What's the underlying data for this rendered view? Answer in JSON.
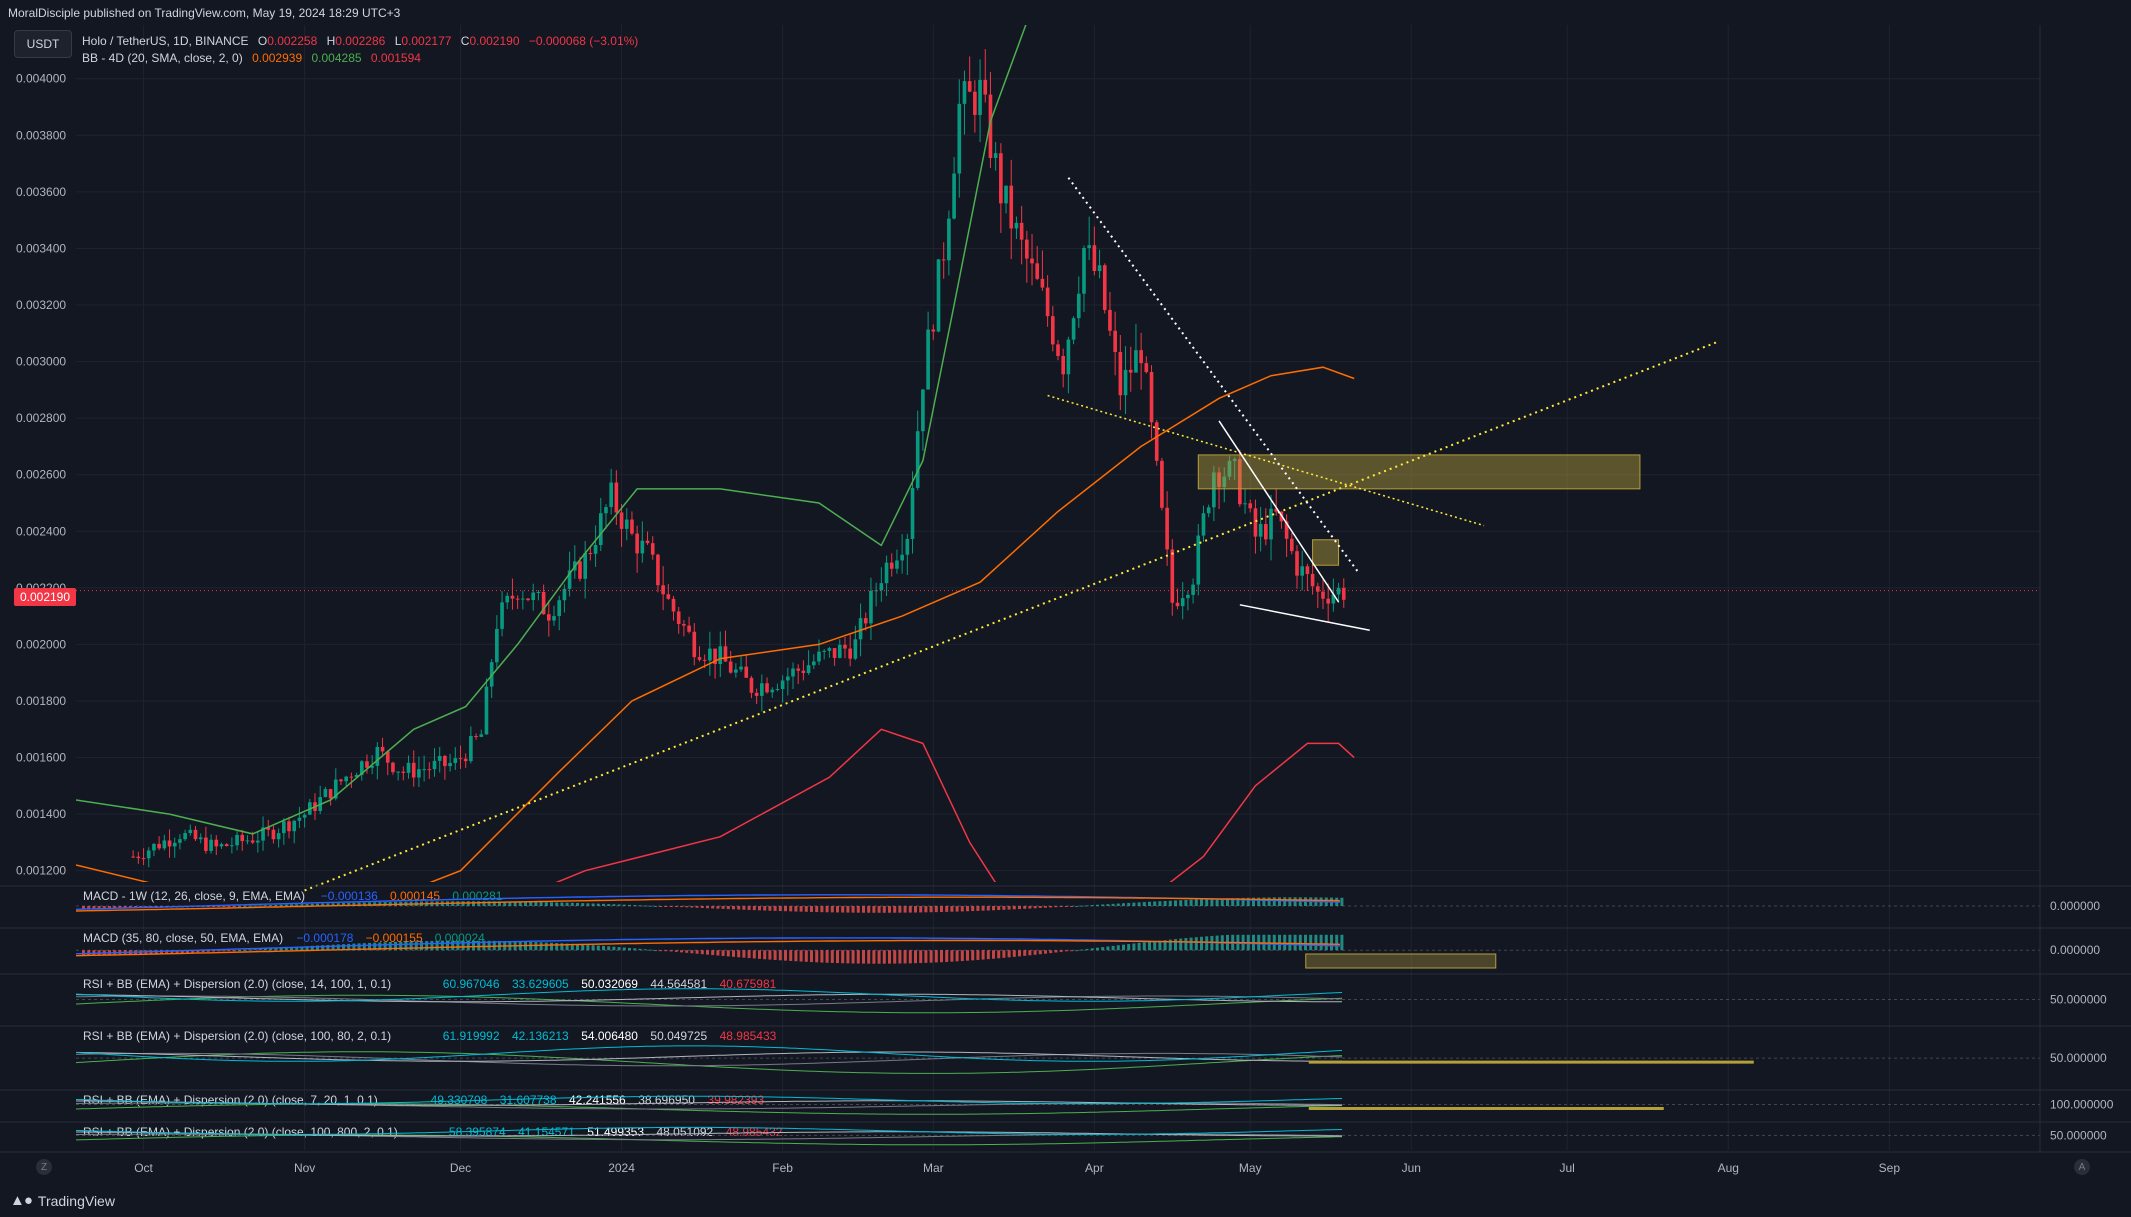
{
  "header": {
    "published": "MoralDisciple published on TradingView.com, May 19, 2024 18:29 UTC+3"
  },
  "currency_button": "USDT",
  "legend": {
    "symbol": "Holo / TetherUS, 1D, BINANCE",
    "o_label": "O",
    "o": "0.002258",
    "h_label": "H",
    "h": "0.002286",
    "l_label": "L",
    "l": "0.002177",
    "c_label": "C",
    "c": "0.002190",
    "change": "−0.000068 (−3.01%)",
    "bb_label": "BB - 4D (20, SMA, close, 2, 0)",
    "bb_basis": "0.002939",
    "bb_upper": "0.004285",
    "bb_lower": "0.001594"
  },
  "last_price_tag": "0.002190",
  "panes": [
    {
      "id": "macd1",
      "label": "MACD - 1W (12, 26, close, 9, EMA, EMA)",
      "values": [
        "−0.000136",
        "0.000145",
        "0.000281"
      ],
      "scale": "0.000000"
    },
    {
      "id": "macd2",
      "label": "MACD (35, 80, close, 50, EMA, EMA)",
      "values": [
        "−0.000178",
        "−0.000155",
        "0.000024"
      ],
      "scale": "0.000000"
    },
    {
      "id": "rsi1",
      "label": "RSI + BB (EMA) + Dispersion (2.0) (close, 14, 100, 1, 0.1)",
      "values": [
        "60.967046",
        "33.629605",
        "50.032069",
        "44.564581",
        "40.675981"
      ],
      "scale": "50.000000"
    },
    {
      "id": "rsi2",
      "label": "RSI + BB (EMA) + Dispersion (2.0) (close, 100, 80, 2, 0.1)",
      "values": [
        "61.919992",
        "42.136213",
        "54.006480",
        "50.049725",
        "48.985433"
      ],
      "scale": "50.000000"
    },
    {
      "id": "rsi3",
      "label": "RSI + BB (EMA) + Dispersion (2.0) (close, 7, 20, 1, 0.1)",
      "values": [
        "49.330708",
        "31.607738",
        "42.241556",
        "38.696950",
        "39.982393"
      ],
      "scale": "100.000000"
    },
    {
      "id": "rsi4",
      "label": "RSI + BB (EMA) + Dispersion (2.0) (close, 100, 800, 2, 0.1)",
      "values": [
        "58.395874",
        "41.154571",
        "51.499353",
        "48.051092",
        "48.985432"
      ],
      "scale": "50.000000"
    }
  ],
  "brand": "TradingView",
  "corner_left": "Z",
  "corner_right": "A",
  "colors": {
    "background": "#131722",
    "up": "#089981",
    "down": "#f23645",
    "bb_basis": "#ff6d00",
    "bb_upper": "#4caf50",
    "bb_lower": "#f23645",
    "trendline": "#ffeb3b",
    "zone": "#b59f3b"
  },
  "chart_data": {
    "type": "candlestick",
    "symbol": "Holo / TetherUS",
    "interval": "1D",
    "exchange": "BINANCE",
    "yticks": [
      "0.004000",
      "0.003800",
      "0.003600",
      "0.003400",
      "0.003200",
      "0.003000",
      "0.002800",
      "0.002600",
      "0.002400",
      "0.002200",
      "0.002000",
      "0.001800",
      "0.001600",
      "0.001400",
      "0.001200"
    ],
    "ylim": [
      0.00116,
      0.00419
    ],
    "xticks": [
      {
        "label": "Oct",
        "date": "2023-10-01"
      },
      {
        "label": "Nov",
        "date": "2023-11-01"
      },
      {
        "label": "Dec",
        "date": "2023-12-01"
      },
      {
        "label": "2024",
        "date": "2024-01-01"
      },
      {
        "label": "Feb",
        "date": "2024-02-01"
      },
      {
        "label": "Mar",
        "date": "2024-03-01"
      },
      {
        "label": "Apr",
        "date": "2024-04-01"
      },
      {
        "label": "May",
        "date": "2024-05-01"
      },
      {
        "label": "Jun",
        "date": "2024-06-01"
      },
      {
        "label": "Jul",
        "date": "2024-07-01"
      },
      {
        "label": "Aug",
        "date": "2024-08-01"
      },
      {
        "label": "Sep",
        "date": "2024-09-01"
      }
    ],
    "xlim": [
      "2023-09-18",
      "2024-09-30"
    ],
    "close_path": [
      [
        "2023-09-29",
        0.00125
      ],
      [
        "2023-10-08",
        0.00133
      ],
      [
        "2023-10-15",
        0.00128
      ],
      [
        "2023-10-25",
        0.00133
      ],
      [
        "2023-11-01",
        0.0014
      ],
      [
        "2023-11-10",
        0.00155
      ],
      [
        "2023-11-15",
        0.00162
      ],
      [
        "2023-11-20",
        0.00155
      ],
      [
        "2023-11-30",
        0.00158
      ],
      [
        "2023-12-05",
        0.00168
      ],
      [
        "2023-12-08",
        0.00208
      ],
      [
        "2023-12-12",
        0.0022
      ],
      [
        "2023-12-18",
        0.00212
      ],
      [
        "2023-12-25",
        0.0023
      ],
      [
        "2023-12-30",
        0.00252
      ],
      [
        "2024-01-03",
        0.00238
      ],
      [
        "2024-01-06",
        0.00232
      ],
      [
        "2024-01-10",
        0.00215
      ],
      [
        "2024-01-15",
        0.002
      ],
      [
        "2024-01-20",
        0.00195
      ],
      [
        "2024-01-26",
        0.00185
      ],
      [
        "2024-02-01",
        0.00188
      ],
      [
        "2024-02-08",
        0.00195
      ],
      [
        "2024-02-15",
        0.002
      ],
      [
        "2024-02-20",
        0.00225
      ],
      [
        "2024-02-25",
        0.0024
      ],
      [
        "2024-02-28",
        0.00295
      ],
      [
        "2024-03-03",
        0.0034
      ],
      [
        "2024-03-06",
        0.0039
      ],
      [
        "2024-03-10",
        0.00395
      ],
      [
        "2024-03-14",
        0.0036
      ],
      [
        "2024-03-18",
        0.0034
      ],
      [
        "2024-03-22",
        0.00322
      ],
      [
        "2024-03-26",
        0.003
      ],
      [
        "2024-03-30",
        0.0034
      ],
      [
        "2024-04-02",
        0.00328
      ],
      [
        "2024-04-06",
        0.0029
      ],
      [
        "2024-04-10",
        0.00305
      ],
      [
        "2024-04-13",
        0.0026
      ],
      [
        "2024-04-16",
        0.00215
      ],
      [
        "2024-04-20",
        0.00225
      ],
      [
        "2024-04-24",
        0.00262
      ],
      [
        "2024-04-28",
        0.0026
      ],
      [
        "2024-05-02",
        0.00238
      ],
      [
        "2024-05-06",
        0.00245
      ],
      [
        "2024-05-10",
        0.00228
      ],
      [
        "2024-05-14",
        0.00218
      ],
      [
        "2024-05-19",
        0.00219
      ]
    ],
    "bollinger_4d": {
      "upper": [
        [
          "2023-09-18",
          0.00145
        ],
        [
          "2023-10-06",
          0.0014
        ],
        [
          "2023-10-22",
          0.00133
        ],
        [
          "2023-11-06",
          0.00145
        ],
        [
          "2023-11-22",
          0.0017
        ],
        [
          "2023-12-02",
          0.00178
        ],
        [
          "2023-12-12",
          0.002
        ],
        [
          "2023-12-24",
          0.0023
        ],
        [
          "2024-01-04",
          0.00255
        ],
        [
          "2024-01-20",
          0.00255
        ],
        [
          "2024-02-08",
          0.0025
        ],
        [
          "2024-02-20",
          0.00235
        ],
        [
          "2024-02-28",
          0.00265
        ],
        [
          "2024-03-05",
          0.0032
        ],
        [
          "2024-03-12",
          0.00385
        ],
        [
          "2024-03-20",
          0.00425
        ]
      ],
      "basis": [
        [
          "2023-09-18",
          0.00122
        ],
        [
          "2023-10-15",
          0.0011
        ],
        [
          "2023-11-10",
          0.00105
        ],
        [
          "2023-12-01",
          0.0012
        ],
        [
          "2023-12-20",
          0.00155
        ],
        [
          "2024-01-03",
          0.0018
        ],
        [
          "2024-01-20",
          0.00195
        ],
        [
          "2024-02-08",
          0.002
        ],
        [
          "2024-02-24",
          0.0021
        ],
        [
          "2024-03-10",
          0.00222
        ],
        [
          "2024-03-25",
          0.00247
        ],
        [
          "2024-04-10",
          0.0027
        ],
        [
          "2024-04-25",
          0.00287
        ],
        [
          "2024-05-05",
          0.00295
        ],
        [
          "2024-05-15",
          0.00298
        ],
        [
          "2024-05-21",
          0.00294
        ]
      ],
      "lower": [
        [
          "2023-12-05",
          0.00105
        ],
        [
          "2023-12-25",
          0.0012
        ],
        [
          "2024-01-20",
          0.00132
        ],
        [
          "2024-02-10",
          0.00153
        ],
        [
          "2024-02-20",
          0.0017
        ],
        [
          "2024-02-28",
          0.00165
        ],
        [
          "2024-03-08",
          0.0013
        ],
        [
          "2024-03-15",
          0.0011
        ],
        [
          "2024-04-08",
          0.00105
        ],
        [
          "2024-04-22",
          0.00125
        ],
        [
          "2024-05-02",
          0.0015
        ],
        [
          "2024-05-12",
          0.00165
        ],
        [
          "2024-05-18",
          0.00165
        ],
        [
          "2024-05-21",
          0.0016
        ]
      ]
    },
    "drawings": {
      "ascending_trendline": [
        [
          "2023-11-01",
          0.00113
        ],
        [
          "2024-07-30",
          0.00307
        ]
      ],
      "descending_line_upper": [
        [
          "2024-03-27",
          0.00365
        ],
        [
          "2024-05-22",
          0.00225
        ]
      ],
      "descending_line_mid": [
        [
          "2024-03-23",
          0.00288
        ],
        [
          "2024-06-15",
          0.00242
        ]
      ],
      "wedge_upper": [
        [
          "2024-04-25",
          0.00279
        ],
        [
          "2024-05-18",
          0.00215
        ]
      ],
      "wedge_lower": [
        [
          "2024-04-29",
          0.00214
        ],
        [
          "2024-05-24",
          0.00205
        ]
      ],
      "supply_zone": {
        "from": "2024-04-21",
        "to": "2024-07-15",
        "low": 0.00255,
        "high": 0.00267
      },
      "small_zone": {
        "from": "2024-05-13",
        "to": "2024-05-18",
        "low": 0.00228,
        "high": 0.00237
      }
    }
  }
}
